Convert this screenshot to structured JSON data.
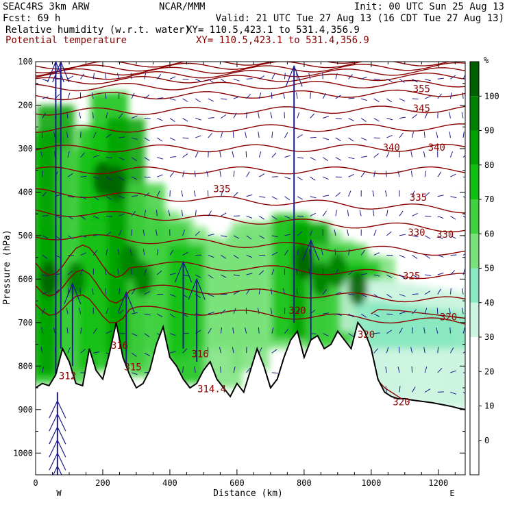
{
  "header": {
    "model": "SEAC4RS  3km ARW",
    "org": "NCAR/MMM",
    "init": "Init: 00 UTC Sun 25 Aug 13",
    "fcst_label": "Fcst:   69 h",
    "valid": "Valid: 21 UTC Tue 27 Aug 13 (16 CDT Tue 27 Aug 13)",
    "field1": "Relative humidity (w.r.t. water)",
    "xy1": "XY= 110.5,423.1 to 531.4,356.9",
    "field2": "Potential temperature",
    "xy2": "XY= 110.5,423.1 to 531.4,356.9"
  },
  "chart_data": {
    "type": "heatmap",
    "title": "Relative humidity (w.r.t. water)",
    "xlabel": "Distance (km)",
    "ylabel": "Pressure (hPa)",
    "xlim": [
      0,
      1280
    ],
    "ylim": [
      1050,
      100
    ],
    "x_ticks": [
      0,
      200,
      400,
      600,
      800,
      1000,
      1200
    ],
    "y_ticks": [
      100,
      200,
      300,
      400,
      500,
      600,
      700,
      800,
      900,
      1000
    ],
    "x_end_labels": {
      "left": "W",
      "right": "E"
    },
    "colorbar": {
      "unit": "%",
      "levels": [
        -10,
        0,
        10,
        20,
        30,
        40,
        50,
        60,
        70,
        80,
        90,
        100,
        110
      ],
      "tick_labels": [
        0,
        10,
        20,
        30,
        40,
        50,
        60,
        70,
        80,
        90,
        100
      ],
      "colors": [
        "#ffffff",
        "#ffffff",
        "#ffffff",
        "#ffffff",
        "#ccf5e0",
        "#88e8c0",
        "#7ae27a",
        "#40d040",
        "#10c010",
        "#00a000",
        "#008000",
        "#006000"
      ]
    },
    "theta_contours": {
      "color": "#8b0000",
      "levels": [
        312,
        314,
        316,
        318,
        320,
        325,
        330,
        335,
        340,
        345,
        355
      ],
      "labels": [
        {
          "text": "355",
          "x": 1150,
          "p": 170
        },
        {
          "text": "345",
          "x": 1150,
          "p": 215
        },
        {
          "text": "340",
          "x": 1060,
          "p": 305
        },
        {
          "text": "340",
          "x": 1195,
          "p": 305
        },
        {
          "text": "335",
          "x": 555,
          "p": 400
        },
        {
          "text": "335",
          "x": 1140,
          "p": 420
        },
        {
          "text": "330",
          "x": 1135,
          "p": 500
        },
        {
          "text": "330",
          "x": 1220,
          "p": 505
        },
        {
          "text": "325",
          "x": 1120,
          "p": 600
        },
        {
          "text": "320",
          "x": 780,
          "p": 680
        },
        {
          "text": "320",
          "x": 985,
          "p": 735
        },
        {
          "text": "320",
          "x": 1230,
          "p": 695
        },
        {
          "text": "320",
          "x": 1090,
          "p": 890
        },
        {
          "text": "316",
          "x": 250,
          "p": 760
        },
        {
          "text": "315",
          "x": 290,
          "p": 810
        },
        {
          "text": "316",
          "x": 490,
          "p": 780
        },
        {
          "text": "314.4",
          "x": 525,
          "p": 860
        },
        {
          "text": "312",
          "x": 95,
          "p": 830
        }
      ]
    },
    "terrain_p": [
      [
        0,
        850
      ],
      [
        20,
        840
      ],
      [
        40,
        845
      ],
      [
        60,
        820
      ],
      [
        80,
        760
      ],
      [
        100,
        790
      ],
      [
        120,
        840
      ],
      [
        140,
        845
      ],
      [
        160,
        760
      ],
      [
        180,
        810
      ],
      [
        200,
        830
      ],
      [
        220,
        770
      ],
      [
        240,
        700
      ],
      [
        260,
        780
      ],
      [
        280,
        820
      ],
      [
        300,
        850
      ],
      [
        320,
        840
      ],
      [
        340,
        810
      ],
      [
        360,
        750
      ],
      [
        380,
        710
      ],
      [
        400,
        780
      ],
      [
        420,
        800
      ],
      [
        440,
        830
      ],
      [
        460,
        850
      ],
      [
        480,
        840
      ],
      [
        500,
        810
      ],
      [
        520,
        790
      ],
      [
        540,
        830
      ],
      [
        560,
        850
      ],
      [
        580,
        870
      ],
      [
        600,
        840
      ],
      [
        620,
        860
      ],
      [
        640,
        810
      ],
      [
        660,
        760
      ],
      [
        680,
        800
      ],
      [
        700,
        850
      ],
      [
        720,
        830
      ],
      [
        740,
        780
      ],
      [
        760,
        740
      ],
      [
        780,
        720
      ],
      [
        800,
        780
      ],
      [
        820,
        740
      ],
      [
        840,
        730
      ],
      [
        860,
        760
      ],
      [
        880,
        750
      ],
      [
        900,
        720
      ],
      [
        920,
        740
      ],
      [
        940,
        760
      ],
      [
        960,
        700
      ],
      [
        980,
        720
      ],
      [
        1000,
        760
      ],
      [
        1020,
        830
      ],
      [
        1040,
        860
      ],
      [
        1060,
        870
      ],
      [
        1080,
        875
      ],
      [
        1100,
        875
      ],
      [
        1120,
        878
      ],
      [
        1140,
        880
      ],
      [
        1160,
        882
      ],
      [
        1180,
        884
      ],
      [
        1200,
        887
      ],
      [
        1220,
        890
      ],
      [
        1240,
        893
      ],
      [
        1260,
        897
      ],
      [
        1280,
        900
      ]
    ]
  }
}
